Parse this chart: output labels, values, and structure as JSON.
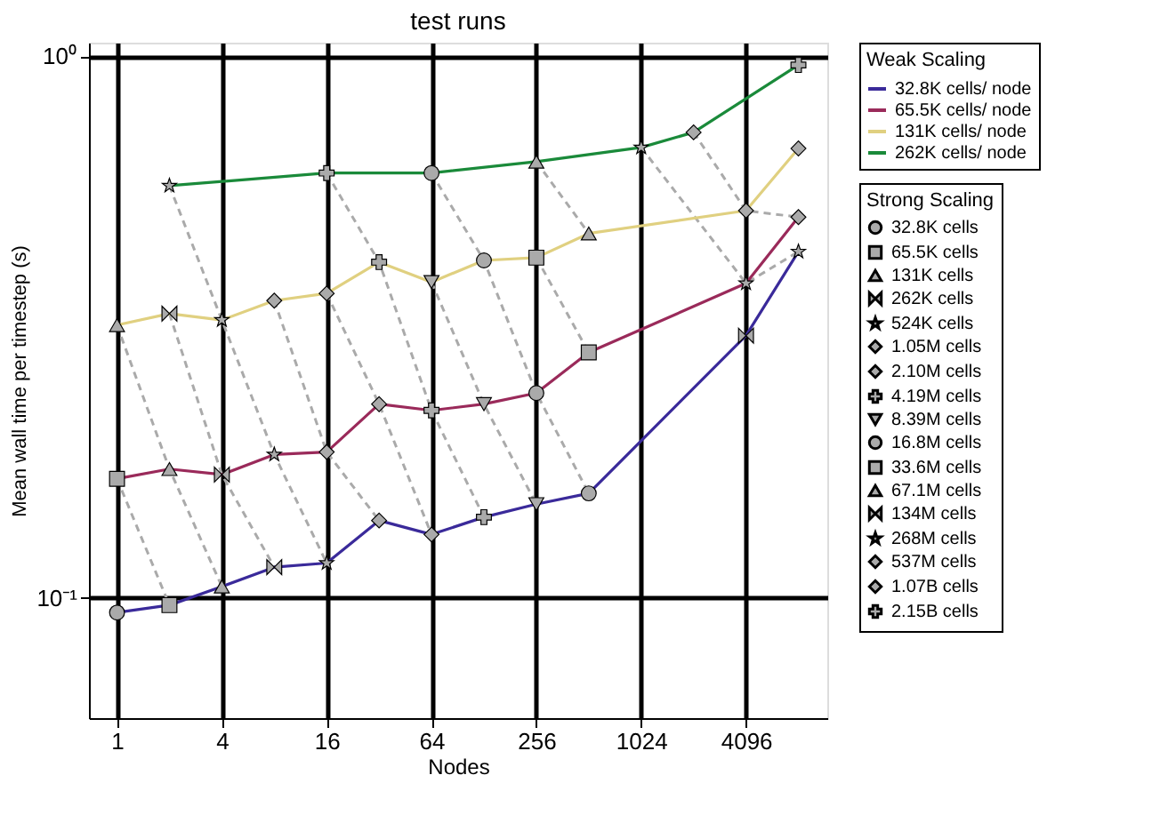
{
  "chart_data": {
    "type": "line",
    "title": "test runs",
    "xlabel": "Nodes",
    "ylabel": "Mean wall time per timestep (s)",
    "log": "xy",
    "xlim": [
      0.69,
      12000
    ],
    "ylim": [
      0.06,
      1.06
    ],
    "xticks": [
      1,
      4,
      16,
      64,
      256,
      1024,
      4096
    ],
    "yticks": [
      {
        "value": 0.1,
        "label": "10⁻¹"
      },
      {
        "value": 1,
        "label": "10⁰"
      }
    ],
    "grid": true,
    "legend": "right",
    "legend_title": [
      "Weak Scaling",
      "Strong Scaling"
    ],
    "series": [
      {
        "name": "32.8K cells/ node",
        "color": "#3a2a9a",
        "marker": "none",
        "line_style": "solid",
        "x": [
          1,
          2,
          4,
          8,
          16,
          32,
          64,
          128,
          256,
          512,
          4096,
          8192
        ],
        "values": [
          0.094,
          0.097,
          0.105,
          0.114,
          0.116,
          0.139,
          0.131,
          0.141,
          0.149,
          0.156,
          0.305,
          0.436
        ]
      },
      {
        "name": "65.5K cells/ node",
        "color": "#9a2a5a",
        "marker": "none",
        "line_style": "solid",
        "x": [
          1,
          2,
          4,
          8,
          16,
          32,
          64,
          128,
          256,
          512,
          4096,
          8192
        ],
        "values": [
          0.166,
          0.173,
          0.169,
          0.184,
          0.186,
          0.228,
          0.222,
          0.228,
          0.239,
          0.284,
          0.381,
          0.505
        ]
      },
      {
        "name": "131K cells/ node",
        "color": "#e0d080",
        "marker": "none",
        "line_style": "solid",
        "x": [
          1,
          2,
          4,
          8,
          16,
          32,
          64,
          128,
          256,
          512,
          4096,
          8192
        ],
        "values": [
          0.319,
          0.335,
          0.326,
          0.354,
          0.365,
          0.417,
          0.383,
          0.42,
          0.425,
          0.471,
          0.519,
          0.676
        ]
      },
      {
        "name": "262K cells/ node",
        "color": "#1a8a3a",
        "marker": "none",
        "line_style": "solid",
        "x": [
          2,
          16,
          64,
          256,
          1024,
          2048,
          8192
        ],
        "values": [
          0.577,
          0.609,
          0.609,
          0.639,
          0.679,
          0.724,
          0.964
        ]
      },
      {
        "name": "32.8K cells",
        "color": "#aaaaaa",
        "marker": "circle",
        "line_style": "dashed",
        "x": [
          1
        ],
        "values": [
          0.094
        ]
      },
      {
        "name": "65.5K cells",
        "color": "#aaaaaa",
        "marker": "square",
        "line_style": "dashed",
        "x": [
          1,
          2
        ],
        "values": [
          0.166,
          0.097
        ]
      },
      {
        "name": "131K cells",
        "color": "#aaaaaa",
        "marker": "triangle",
        "line_style": "dashed",
        "x": [
          1,
          2,
          4
        ],
        "values": [
          0.319,
          0.173,
          0.105
        ]
      },
      {
        "name": "262K cells",
        "color": "#aaaaaa",
        "marker": "cross",
        "line_style": "dashed",
        "x": [
          2,
          4,
          8
        ],
        "values": [
          0.335,
          0.169,
          0.114
        ]
      },
      {
        "name": "524K cells",
        "color": "#aaaaaa",
        "marker": "star",
        "line_style": "dashed",
        "x": [
          2,
          4,
          8,
          16
        ],
        "values": [
          0.577,
          0.326,
          0.184,
          0.116
        ]
      },
      {
        "name": "1.05M cells",
        "color": "#aaaaaa",
        "marker": "diamond",
        "line_style": "dashed",
        "x": [
          8,
          16,
          32
        ],
        "values": [
          0.354,
          0.186,
          0.139
        ]
      },
      {
        "name": "2.10M cells",
        "color": "#aaaaaa",
        "marker": "diamond",
        "line_style": "dashed",
        "x": [
          16,
          32,
          64
        ],
        "values": [
          0.365,
          0.228,
          0.131
        ]
      },
      {
        "name": "4.19M cells",
        "color": "#aaaaaa",
        "marker": "plus",
        "line_style": "dashed",
        "x": [
          16,
          32,
          64,
          128
        ],
        "values": [
          0.609,
          0.417,
          0.222,
          0.141
        ]
      },
      {
        "name": "8.39M cells",
        "color": "#aaaaaa",
        "marker": "triangle_down",
        "line_style": "dashed",
        "x": [
          64,
          128,
          256
        ],
        "values": [
          0.383,
          0.228,
          0.149
        ]
      },
      {
        "name": "16.8M cells",
        "color": "#aaaaaa",
        "marker": "circle",
        "line_style": "dashed",
        "x": [
          64,
          128,
          256,
          512
        ],
        "values": [
          0.609,
          0.42,
          0.239,
          0.156
        ]
      },
      {
        "name": "33.6M cells",
        "color": "#aaaaaa",
        "marker": "square",
        "line_style": "dashed",
        "x": [
          256,
          512
        ],
        "values": [
          0.425,
          0.284
        ]
      },
      {
        "name": "67.1M cells",
        "color": "#aaaaaa",
        "marker": "triangle",
        "line_style": "dashed",
        "x": [
          256,
          512
        ],
        "values": [
          0.639,
          0.471
        ]
      },
      {
        "name": "134M cells",
        "color": "#aaaaaa",
        "marker": "cross",
        "line_style": "dashed",
        "x": [
          4096
        ],
        "values": [
          0.305
        ]
      },
      {
        "name": "268M cells",
        "color": "#aaaaaa",
        "marker": "star",
        "line_style": "dashed",
        "x": [
          1024,
          4096,
          8192
        ],
        "values": [
          0.679,
          0.381,
          0.436
        ]
      },
      {
        "name": "537M cells",
        "color": "#aaaaaa",
        "marker": "diamond",
        "line_style": "dashed",
        "x": [
          2048,
          4096,
          8192
        ],
        "values": [
          0.724,
          0.519,
          0.505
        ]
      },
      {
        "name": "1.07B cells",
        "color": "#aaaaaa",
        "marker": "diamond",
        "line_style": "dashed",
        "x": [
          8192
        ],
        "values": [
          0.676
        ]
      },
      {
        "name": "2.15B cells",
        "color": "#aaaaaa",
        "marker": "plus",
        "line_style": "dashed",
        "x": [
          8192
        ],
        "values": [
          0.964
        ]
      }
    ]
  }
}
